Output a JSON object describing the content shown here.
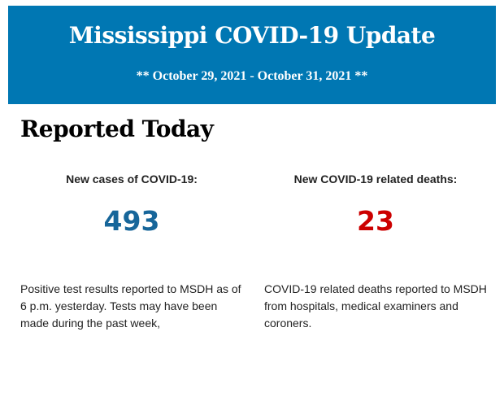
{
  "header": {
    "title": "Mississippi COVID-19 Update",
    "date_range": "** October 29, 2021 - October 31, 2021 **"
  },
  "section": {
    "title": "Reported Today"
  },
  "stats": [
    {
      "label": "New cases of COVID-19:",
      "value": "493",
      "color": "#17669a",
      "description": "Positive test results reported to MSDH as of 6 p.m. yesterday. Tests may have been made during the past week,"
    },
    {
      "label": "New COVID-19 related deaths:",
      "value": "23",
      "color": "#cc0000",
      "description": "COVID-19 related deaths reported to MSDH from hospitals, medical examiners and coroners."
    }
  ]
}
